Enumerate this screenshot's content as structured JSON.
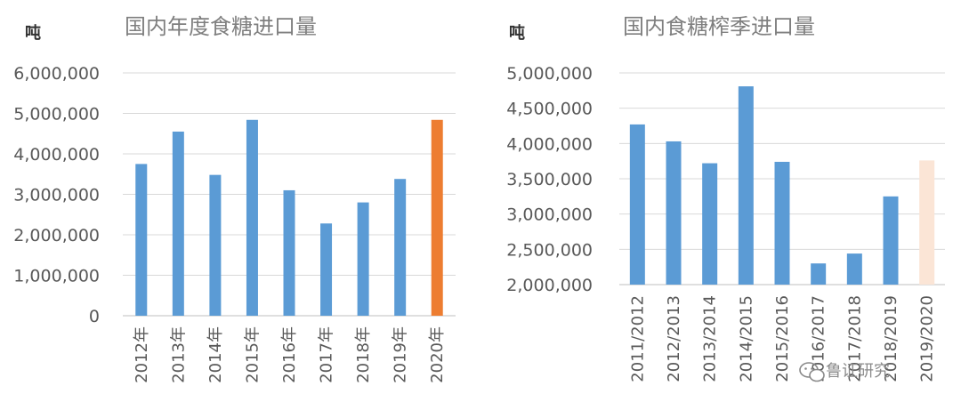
{
  "chart_data": [
    {
      "type": "bar",
      "title": "国内年度食糖进口量",
      "ylabel": "吨",
      "xlabel": "",
      "categories": [
        "2012年",
        "2013年",
        "2014年",
        "2015年",
        "2016年",
        "2017年",
        "2018年",
        "2019年",
        "2020年"
      ],
      "values": [
        3750000,
        4550000,
        3480000,
        4840000,
        3100000,
        2280000,
        2800000,
        3380000,
        4840000
      ],
      "ylim": [
        0,
        6000000
      ],
      "yticks": [
        "0",
        "1,000,000",
        "2,000,000",
        "3,000,000",
        "4,000,000",
        "5,000,000",
        "6,000,000"
      ],
      "colors": {
        "default": "#5b9bd5",
        "highlight": "#ed7d31"
      },
      "highlight_index": 8,
      "grid": true,
      "legend": "none"
    },
    {
      "type": "bar",
      "title": "国内食糖榨季进口量",
      "ylabel": "吨",
      "xlabel": "",
      "categories": [
        "2011/2012",
        "2012/2013",
        "2013/2014",
        "2014/2015",
        "2015/2016",
        "2016/2017",
        "2017/2018",
        "2018/2019",
        "2019/2020"
      ],
      "values": [
        4270000,
        4030000,
        3720000,
        4810000,
        3740000,
        2300000,
        2440000,
        3250000,
        3760000
      ],
      "ylim": [
        2000000,
        5000000
      ],
      "yticks": [
        "2,000,000",
        "2,500,000",
        "3,000,000",
        "3,500,000",
        "4,000,000",
        "4,500,000",
        "5,000,000"
      ],
      "colors": {
        "default": "#5b9bd5",
        "highlight": "#fbe5d6"
      },
      "highlight_index": 8,
      "grid": true,
      "legend": "none"
    }
  ],
  "watermark": "鲁证研究"
}
